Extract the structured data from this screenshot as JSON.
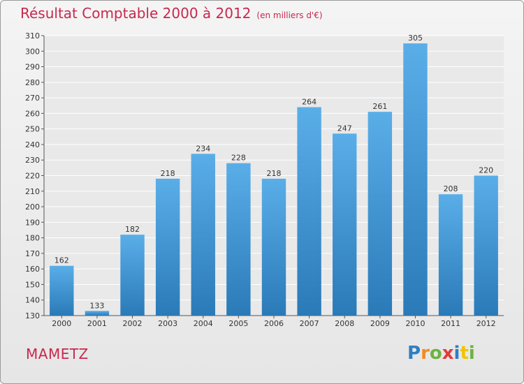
{
  "chart_data": {
    "type": "bar",
    "title": "Résultat Comptable 2000 à 2012",
    "subtitle": "(en milliers d'€)",
    "categories": [
      "2000",
      "2001",
      "2002",
      "2003",
      "2004",
      "2005",
      "2006",
      "2007",
      "2008",
      "2009",
      "2010",
      "2011",
      "2012"
    ],
    "values": [
      162,
      133,
      182,
      218,
      234,
      228,
      218,
      264,
      247,
      261,
      305,
      208,
      220
    ],
    "ylim": [
      130,
      310
    ],
    "yticks": [
      130,
      140,
      150,
      160,
      170,
      180,
      190,
      200,
      210,
      220,
      230,
      240,
      250,
      260,
      270,
      280,
      290,
      300,
      310
    ],
    "xlabel": "",
    "ylabel": "",
    "grid": true,
    "bar_color_top": "#5aaee8",
    "bar_color_bottom": "#2a7ab8"
  },
  "commune": "MAMETZ",
  "logo": {
    "letters": [
      "P",
      "r",
      "o",
      "x",
      "i",
      "t",
      "i"
    ],
    "colors": [
      "#2f7fc1",
      "#f28c1e",
      "#6cb33f",
      "#e23b3b",
      "#2f7fc1",
      "#f2c400",
      "#6cb33f"
    ]
  }
}
